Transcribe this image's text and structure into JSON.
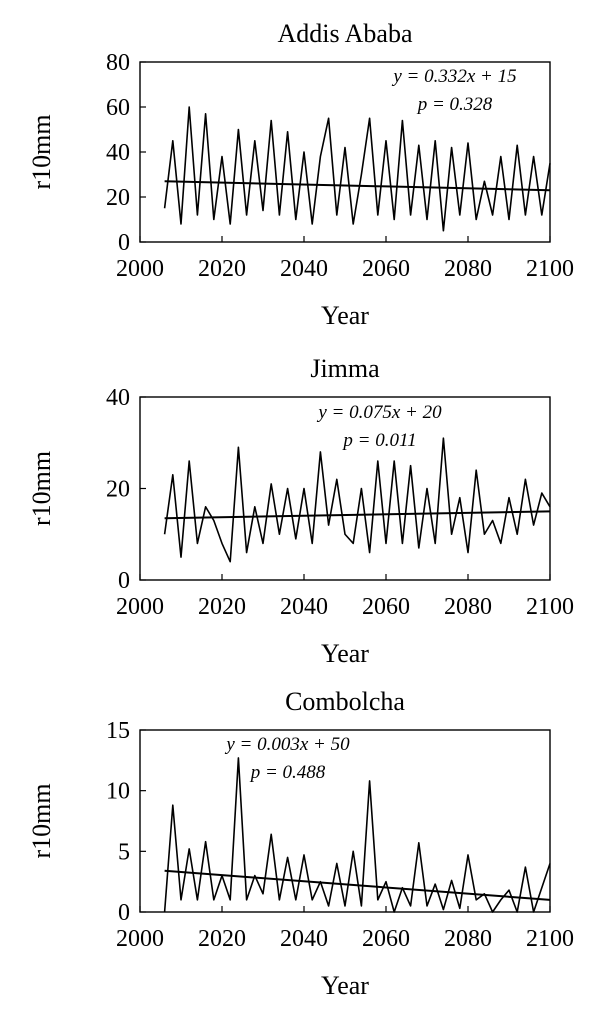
{
  "chart_data": [
    {
      "type": "line",
      "title": "Addis Ababa",
      "xlabel": "Year",
      "ylabel": "r10mm",
      "xlim": [
        2000,
        2100
      ],
      "xticks": [
        2000,
        2020,
        2040,
        2060,
        2080,
        2100
      ],
      "ylim": [
        0,
        80
      ],
      "yticks": [
        0,
        20,
        40,
        60,
        80
      ],
      "x": [
        2006,
        2008,
        2010,
        2012,
        2014,
        2016,
        2018,
        2020,
        2022,
        2024,
        2026,
        2028,
        2030,
        2032,
        2034,
        2036,
        2038,
        2040,
        2042,
        2044,
        2046,
        2048,
        2050,
        2052,
        2054,
        2056,
        2058,
        2060,
        2062,
        2064,
        2066,
        2068,
        2070,
        2072,
        2074,
        2076,
        2078,
        2080,
        2082,
        2084,
        2086,
        2088,
        2090,
        2092,
        2094,
        2096,
        2098,
        2100
      ],
      "series": [
        {
          "color": "#000000",
          "values": [
            15,
            45,
            8,
            60,
            12,
            57,
            10,
            38,
            8,
            50,
            12,
            45,
            14,
            54,
            12,
            49,
            10,
            40,
            8,
            38,
            55,
            12,
            42,
            8,
            30,
            55,
            12,
            45,
            10,
            54,
            12,
            43,
            10,
            45,
            5,
            42,
            12,
            44,
            10,
            27,
            12,
            38,
            10,
            43,
            12,
            38,
            12,
            35
          ]
        }
      ],
      "trend": {
        "color": "#000000",
        "x": [
          2006,
          2100
        ],
        "values": [
          27,
          23
        ]
      },
      "annotations": [
        "y = 0.332x + 15",
        "p = 0.328"
      ]
    },
    {
      "type": "line",
      "title": "Jimma",
      "xlabel": "Year",
      "ylabel": "r10mm",
      "xlim": [
        2000,
        2100
      ],
      "xticks": [
        2000,
        2020,
        2040,
        2060,
        2080,
        2100
      ],
      "ylim": [
        0,
        40
      ],
      "yticks": [
        0,
        20,
        40
      ],
      "x": [
        2006,
        2008,
        2010,
        2012,
        2014,
        2016,
        2018,
        2020,
        2022,
        2024,
        2026,
        2028,
        2030,
        2032,
        2034,
        2036,
        2038,
        2040,
        2042,
        2044,
        2046,
        2048,
        2050,
        2052,
        2054,
        2056,
        2058,
        2060,
        2062,
        2064,
        2066,
        2068,
        2070,
        2072,
        2074,
        2076,
        2078,
        2080,
        2082,
        2084,
        2086,
        2088,
        2090,
        2092,
        2094,
        2096,
        2098,
        2100
      ],
      "series": [
        {
          "color": "#000000",
          "values": [
            10,
            23,
            5,
            26,
            8,
            16,
            13,
            8,
            4,
            29,
            6,
            16,
            8,
            21,
            10,
            20,
            9,
            20,
            8,
            28,
            12,
            22,
            10,
            8,
            20,
            6,
            26,
            8,
            26,
            8,
            25,
            7,
            20,
            8,
            31,
            10,
            18,
            6,
            24,
            10,
            13,
            8,
            18,
            10,
            22,
            12,
            19,
            16
          ]
        }
      ],
      "trend": {
        "color": "#000000",
        "x": [
          2006,
          2100
        ],
        "values": [
          13.5,
          15
        ]
      },
      "annotations": [
        "y = 0.075x + 20",
        "p = 0.011"
      ]
    },
    {
      "type": "line",
      "title": "Combolcha",
      "xlabel": "Year",
      "ylabel": "r10mm",
      "xlim": [
        2000,
        2100
      ],
      "xticks": [
        2000,
        2020,
        2040,
        2060,
        2080,
        2100
      ],
      "ylim": [
        0,
        15
      ],
      "yticks": [
        0,
        5,
        10,
        15
      ],
      "x": [
        2006,
        2008,
        2010,
        2012,
        2014,
        2016,
        2018,
        2020,
        2022,
        2024,
        2026,
        2028,
        2030,
        2032,
        2034,
        2036,
        2038,
        2040,
        2042,
        2044,
        2046,
        2048,
        2050,
        2052,
        2054,
        2056,
        2058,
        2060,
        2062,
        2064,
        2066,
        2068,
        2070,
        2072,
        2074,
        2076,
        2078,
        2080,
        2082,
        2084,
        2086,
        2088,
        2090,
        2092,
        2094,
        2096,
        2098,
        2100
      ],
      "series": [
        {
          "color": "#000000",
          "values": [
            0,
            8.8,
            1,
            5.2,
            1,
            5.8,
            1,
            3,
            1,
            12.7,
            1,
            3,
            1.5,
            6.4,
            1,
            4.5,
            1,
            4.7,
            1,
            2.5,
            0.5,
            4,
            0.5,
            5,
            0.5,
            10.8,
            1,
            2.5,
            0,
            2,
            0.5,
            5.7,
            0.5,
            2.3,
            0.2,
            2.6,
            0.3,
            4.7,
            1,
            1.5,
            0,
            1,
            1.8,
            0,
            3.7,
            0,
            2,
            4
          ]
        }
      ],
      "trend": {
        "color": "#000000",
        "x": [
          2006,
          2100
        ],
        "values": [
          3.4,
          1
        ]
      },
      "annotations": [
        "y = 0.003x + 50",
        "p = 0.488"
      ]
    }
  ]
}
